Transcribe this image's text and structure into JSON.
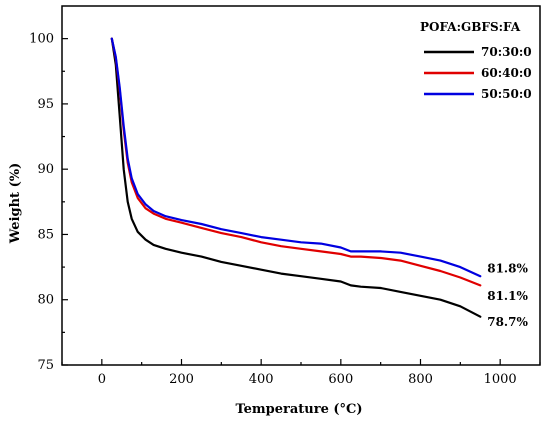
{
  "chart_data": {
    "type": "line",
    "title": "",
    "xlabel": "Temperature (°C)",
    "ylabel": "Weight (%)",
    "xlim": [
      -100,
      1100
    ],
    "ylim": [
      75,
      102.5
    ],
    "xticks": [
      0,
      200,
      400,
      600,
      800,
      1000
    ],
    "yticks": [
      75,
      80,
      85,
      90,
      95,
      100
    ],
    "legend_title": "POFA:GBFS:FA",
    "legend_position": "top-right",
    "series": [
      {
        "name": "70:30:0",
        "color": "#000000",
        "x": [
          25,
          35,
          45,
          55,
          65,
          75,
          90,
          110,
          130,
          160,
          200,
          250,
          300,
          350,
          400,
          450,
          500,
          550,
          600,
          625,
          650,
          700,
          750,
          800,
          850,
          900,
          950
        ],
        "y": [
          100,
          98,
          94,
          90,
          87.5,
          86.2,
          85.2,
          84.6,
          84.2,
          83.9,
          83.6,
          83.3,
          82.9,
          82.6,
          82.3,
          82.0,
          81.8,
          81.6,
          81.4,
          81.1,
          81.0,
          80.9,
          80.6,
          80.3,
          80.0,
          79.5,
          78.7
        ]
      },
      {
        "name": "60:40:0",
        "color": "#e00000",
        "x": [
          25,
          35,
          45,
          55,
          65,
          75,
          90,
          110,
          130,
          160,
          200,
          250,
          300,
          350,
          400,
          450,
          500,
          550,
          600,
          625,
          650,
          700,
          750,
          800,
          850,
          900,
          950
        ],
        "y": [
          100,
          98.5,
          96,
          93,
          90.5,
          89,
          87.8,
          87.0,
          86.6,
          86.2,
          85.9,
          85.5,
          85.1,
          84.8,
          84.4,
          84.1,
          83.9,
          83.7,
          83.5,
          83.3,
          83.3,
          83.2,
          83.0,
          82.6,
          82.2,
          81.7,
          81.1
        ]
      },
      {
        "name": "50:50:0",
        "color": "#0000e0",
        "x": [
          25,
          35,
          45,
          55,
          65,
          75,
          90,
          110,
          130,
          160,
          200,
          250,
          300,
          350,
          400,
          450,
          500,
          550,
          600,
          625,
          650,
          700,
          750,
          800,
          850,
          900,
          950
        ],
        "y": [
          100,
          98.6,
          96.2,
          93.3,
          90.8,
          89.3,
          88.1,
          87.3,
          86.8,
          86.4,
          86.1,
          85.8,
          85.4,
          85.1,
          84.8,
          84.6,
          84.4,
          84.3,
          84.0,
          83.7,
          83.7,
          83.7,
          83.6,
          83.3,
          83.0,
          82.5,
          81.8
        ]
      }
    ],
    "annotations": [
      {
        "text": "81.8%",
        "x": 955,
        "y": 82.4
      },
      {
        "text": "81.1%",
        "x": 955,
        "y": 80.3
      },
      {
        "text": "78.7%",
        "x": 955,
        "y": 78.3
      }
    ]
  }
}
